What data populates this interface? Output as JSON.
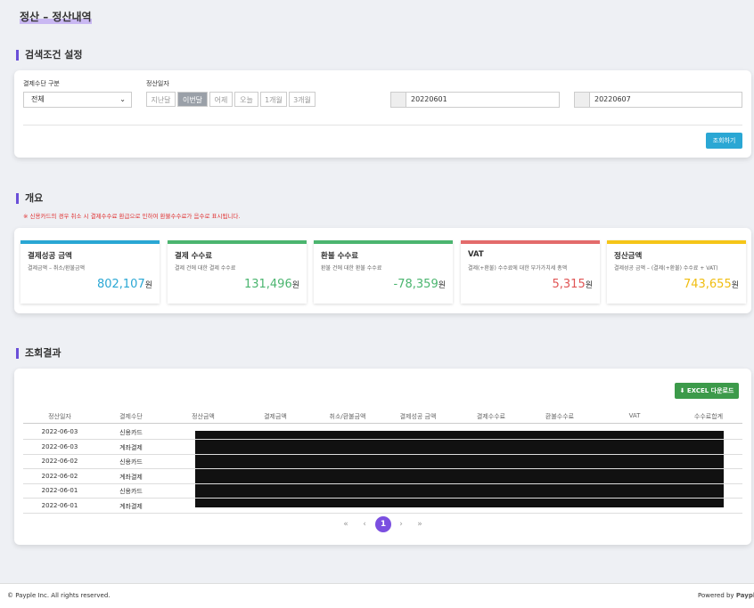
{
  "page_title": "정산 – 정산내역",
  "search": {
    "heading": "검색조건 설정",
    "method_label": "결제수단 구분",
    "method_value": "전체",
    "date_label": "정산일자",
    "period_buttons": [
      "지난달",
      "이번달",
      "어제",
      "오늘",
      "1개월",
      "3개월"
    ],
    "start_date": "20220601",
    "end_date": "20220607",
    "submit": "조회하기"
  },
  "summary": {
    "heading": "개요",
    "note": "※ 신용카드의 경우 취소 시 결제수수료 환급으로 인하여 환불수수료가 음수로 표시됩니다.",
    "cards": [
      {
        "title": "결제성공 금액",
        "desc": "결제금액 – 취소/환불금액",
        "value": "802,107",
        "unit": "원"
      },
      {
        "title": "결제 수수료",
        "desc": "결제 건에 대한 결제 수수료",
        "value": "131,496",
        "unit": "원"
      },
      {
        "title": "환불 수수료",
        "desc": "환불 건에 대한 환불 수수료",
        "value": "-78,359",
        "unit": "원"
      },
      {
        "title": "VAT",
        "desc": "결제(+환불) 수수료에 대한 부가가치세 총액",
        "value": "5,315",
        "unit": "원"
      },
      {
        "title": "정산금액",
        "desc": "결제성공 금액 – (결제(+환불) 수수료 + VAT)",
        "value": "743,655",
        "unit": "원"
      }
    ]
  },
  "results": {
    "heading": "조회결과",
    "excel_button": "EXCEL 다운로드",
    "table": {
      "headers": [
        "정산일자",
        "결제수단",
        "정산금액",
        "결제금액",
        "취소/환불금액",
        "결제성공 금액",
        "결제수수료",
        "환불수수료",
        "VAT",
        "수수료합계"
      ],
      "rows": [
        [
          "2022-06-03",
          "신용카드"
        ],
        [
          "2022-06-03",
          "계좌결제"
        ],
        [
          "2022-06-02",
          "신용카드"
        ],
        [
          "2022-06-02",
          "계좌결제"
        ],
        [
          "2022-06-01",
          "신용카드"
        ],
        [
          "2022-06-01",
          "계좌결제"
        ]
      ]
    },
    "pagination": [
      "«",
      "‹",
      "1",
      "›",
      "»"
    ]
  },
  "footer": {
    "copyright": "© Payple Inc. All rights reserved.",
    "powered_by": "Powered by",
    "brand": "Payple"
  }
}
